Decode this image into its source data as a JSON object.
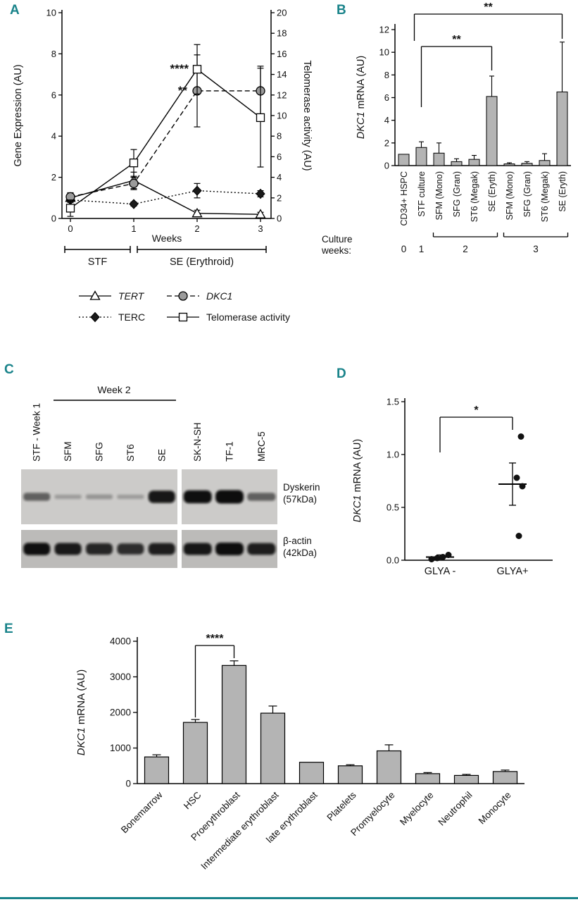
{
  "figure": {
    "accent_color": "#19838a",
    "panel_labels": {
      "A": "A",
      "B": "B",
      "C": "C",
      "D": "D",
      "E": "E"
    }
  },
  "chart_data": [
    {
      "panel": "A",
      "type": "line",
      "xlabel": "Weeks",
      "ylabel_left": "Gene Expression (AU)",
      "ylabel_right": "Telomerase activity (AU)",
      "x": [
        0,
        1,
        2,
        3
      ],
      "ylim_left": [
        0,
        10
      ],
      "yticks_left": [
        0,
        2,
        4,
        6,
        8,
        10
      ],
      "ylim_right": [
        0,
        20
      ],
      "yticks_right": [
        0,
        2,
        4,
        6,
        8,
        10,
        12,
        14,
        16,
        18,
        20
      ],
      "series": [
        {
          "name": "TERT",
          "italic": true,
          "axis": "left",
          "marker": "triangle-open",
          "line": "solid",
          "values": [
            1.0,
            1.85,
            0.25,
            0.2
          ],
          "errors": [
            0.2,
            0.4,
            0.15,
            0.1
          ]
        },
        {
          "name": "TERC",
          "italic": false,
          "axis": "left",
          "marker": "diamond-filled",
          "line": "dotted",
          "values": [
            0.9,
            0.7,
            1.35,
            1.2
          ],
          "errors": [
            0.12,
            0.1,
            0.35,
            0.15
          ]
        },
        {
          "name": "DKC1",
          "italic": true,
          "axis": "left",
          "marker": "circle-gray",
          "line": "dashed",
          "values": [
            1.05,
            1.7,
            6.2,
            6.2
          ],
          "errors": [
            0.2,
            0.3,
            1.75,
            1.2
          ]
        },
        {
          "name": "Telomerase activity",
          "italic": false,
          "axis": "right",
          "marker": "square-open",
          "line": "solid",
          "values": [
            1.0,
            5.4,
            14.5,
            9.8
          ],
          "errors": [
            0.8,
            1.3,
            2.4,
            4.8
          ]
        }
      ],
      "annotations": [
        "****",
        "**"
      ],
      "x_brackets": [
        {
          "label": "STF",
          "from": 0,
          "to": 1
        },
        {
          "label": "SE (Erythroid)",
          "from": 1,
          "to": 3
        }
      ]
    },
    {
      "panel": "B",
      "type": "bar",
      "ylabel_italic": "DKC1",
      "ylabel_rest": " mRNA (AU)",
      "ylim": [
        0,
        12
      ],
      "yticks": [
        0,
        2,
        4,
        6,
        8,
        10,
        12
      ],
      "bar_color": "#b4b4b4",
      "categories": [
        "CD34+ HSPC",
        "STF culture",
        "SFM (Mono)",
        "SFG (Gran)",
        "ST6 (Megak)",
        "SE (Eryth)",
        "SFM (Mono)",
        "SFG (Gran)",
        "ST6 (Megak)",
        "SE (Eryth)"
      ],
      "values": [
        1.0,
        1.6,
        1.1,
        0.35,
        0.55,
        6.1,
        0.15,
        0.2,
        0.45,
        6.5
      ],
      "errors": [
        0,
        0.5,
        0.9,
        0.25,
        0.35,
        1.8,
        0.1,
        0.15,
        0.6,
        4.4
      ],
      "culture_weeks": {
        "line1": "Culture",
        "line2": "weeks:",
        "groups": [
          {
            "label": "0",
            "from": 0,
            "to": 0
          },
          {
            "label": "1",
            "from": 1,
            "to": 1
          },
          {
            "label": "2",
            "from": 2,
            "to": 5
          },
          {
            "label": "3",
            "from": 6,
            "to": 9
          }
        ]
      },
      "sig_brackets": [
        {
          "text": "**",
          "from": 1,
          "to": 9
        },
        {
          "text": "**",
          "from": 1,
          "to": 5
        }
      ]
    },
    {
      "panel": "C",
      "type": "western-blot",
      "group_label": "Week 2",
      "lanes": [
        {
          "label": "STF - Week 1"
        },
        {
          "label": "SFM"
        },
        {
          "label": "SFG"
        },
        {
          "label": "ST6"
        },
        {
          "label": "SE"
        },
        {
          "label": "SK-N-SH"
        },
        {
          "label": "TF-1"
        },
        {
          "label": "MRC-5"
        }
      ],
      "rows": [
        {
          "label_line1": "Dyskerin",
          "label_line2": "(57kDa)",
          "intensities": [
            0.45,
            0.08,
            0.12,
            0.08,
            0.9,
            0.95,
            1.0,
            0.45
          ]
        },
        {
          "label_line1": "β-actin",
          "label_line2": "(42kDa)",
          "intensities": [
            0.95,
            0.88,
            0.8,
            0.75,
            0.85,
            0.9,
            1.0,
            0.85
          ]
        }
      ]
    },
    {
      "panel": "D",
      "type": "scatter",
      "ylabel_italic": "DKC1",
      "ylabel_rest": " mRNA (AU)",
      "ylim": [
        0,
        1.5
      ],
      "yticks": [
        "0.0",
        "0.5",
        "1.0",
        "1.5"
      ],
      "groups": [
        {
          "label": "GLYA -",
          "points": [
            0.01,
            0.02,
            0.03,
            0.05
          ],
          "mean": 0.03,
          "err": 0.02
        },
        {
          "label": "GLYA+",
          "points": [
            1.17,
            0.78,
            0.7,
            0.23
          ],
          "mean": 0.72,
          "err": 0.2
        }
      ],
      "sig": "*"
    },
    {
      "panel": "E",
      "type": "bar",
      "ylabel_italic": "DKC1",
      "ylabel_rest": " mRNA (AU)",
      "ylim": [
        0,
        4000
      ],
      "yticks": [
        0,
        1000,
        2000,
        3000,
        4000
      ],
      "bar_color": "#b4b4b4",
      "categories": [
        "Bonemarrow",
        "HSC",
        "Proerythroblast",
        "Intermediate erythroblast",
        "late erythroblast",
        "Platelets",
        "Promyelocyte",
        "Myelocyte",
        "Neutrophil",
        "Monocyte"
      ],
      "values": [
        750,
        1720,
        3320,
        1980,
        600,
        500,
        920,
        280,
        230,
        340
      ],
      "errors": [
        60,
        80,
        130,
        200,
        0,
        30,
        170,
        30,
        30,
        40
      ],
      "sig_brackets": [
        {
          "text": "****",
          "from": 1,
          "to": 2
        }
      ]
    }
  ]
}
